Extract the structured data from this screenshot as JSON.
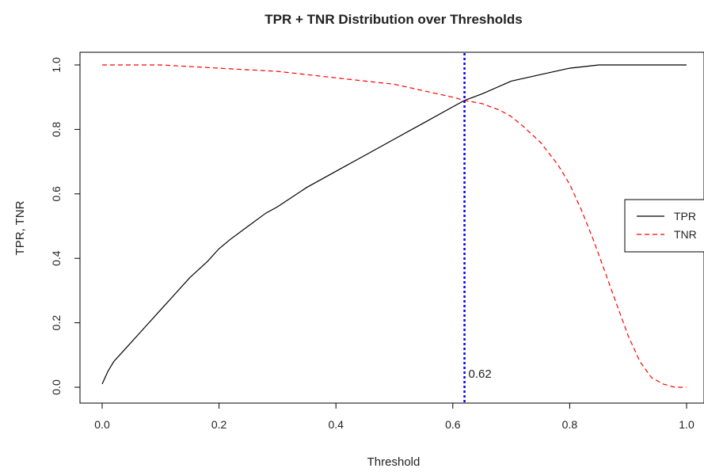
{
  "chart_data": {
    "type": "line",
    "title": "TPR + TNR Distribution over Thresholds",
    "xlabel": "Threshold",
    "ylabel": "TPR, TNR",
    "xlim": [
      0.0,
      1.0
    ],
    "ylim": [
      0.0,
      1.0
    ],
    "xticks": [
      "0.0",
      "0.2",
      "0.4",
      "0.6",
      "0.8",
      "1.0"
    ],
    "yticks": [
      "0.0",
      "0.2",
      "0.4",
      "0.6",
      "0.8",
      "1.0"
    ],
    "grid": false,
    "legend_position": "right",
    "series": [
      {
        "name": "TPR",
        "color": "#000000",
        "line_style": "solid",
        "x": [
          0.0,
          0.01,
          0.02,
          0.04,
          0.06,
          0.08,
          0.1,
          0.12,
          0.15,
          0.18,
          0.2,
          0.22,
          0.25,
          0.28,
          0.3,
          0.35,
          0.4,
          0.45,
          0.5,
          0.55,
          0.6,
          0.62,
          0.65,
          0.7,
          0.75,
          0.8,
          0.85,
          0.9,
          0.95,
          1.0
        ],
        "y": [
          0.01,
          0.05,
          0.08,
          0.12,
          0.16,
          0.2,
          0.24,
          0.28,
          0.34,
          0.39,
          0.43,
          0.46,
          0.5,
          0.54,
          0.56,
          0.62,
          0.67,
          0.72,
          0.77,
          0.82,
          0.87,
          0.89,
          0.91,
          0.95,
          0.97,
          0.99,
          1.0,
          1.0,
          1.0,
          1.0
        ]
      },
      {
        "name": "TNR",
        "color": "#ff0000",
        "line_style": "dashed",
        "x": [
          0.0,
          0.05,
          0.1,
          0.15,
          0.2,
          0.25,
          0.3,
          0.35,
          0.4,
          0.45,
          0.5,
          0.55,
          0.6,
          0.62,
          0.65,
          0.68,
          0.7,
          0.72,
          0.75,
          0.78,
          0.8,
          0.82,
          0.84,
          0.86,
          0.88,
          0.9,
          0.92,
          0.94,
          0.96,
          0.98,
          1.0
        ],
        "y": [
          1.0,
          1.0,
          1.0,
          0.995,
          0.99,
          0.985,
          0.98,
          0.97,
          0.96,
          0.95,
          0.94,
          0.92,
          0.9,
          0.89,
          0.88,
          0.86,
          0.84,
          0.81,
          0.76,
          0.69,
          0.63,
          0.55,
          0.46,
          0.36,
          0.26,
          0.16,
          0.08,
          0.03,
          0.01,
          0.0,
          0.0
        ]
      }
    ],
    "vline": {
      "x": 0.62,
      "color": "#0000ff",
      "line_style": "dotted",
      "label": "0.62"
    }
  }
}
